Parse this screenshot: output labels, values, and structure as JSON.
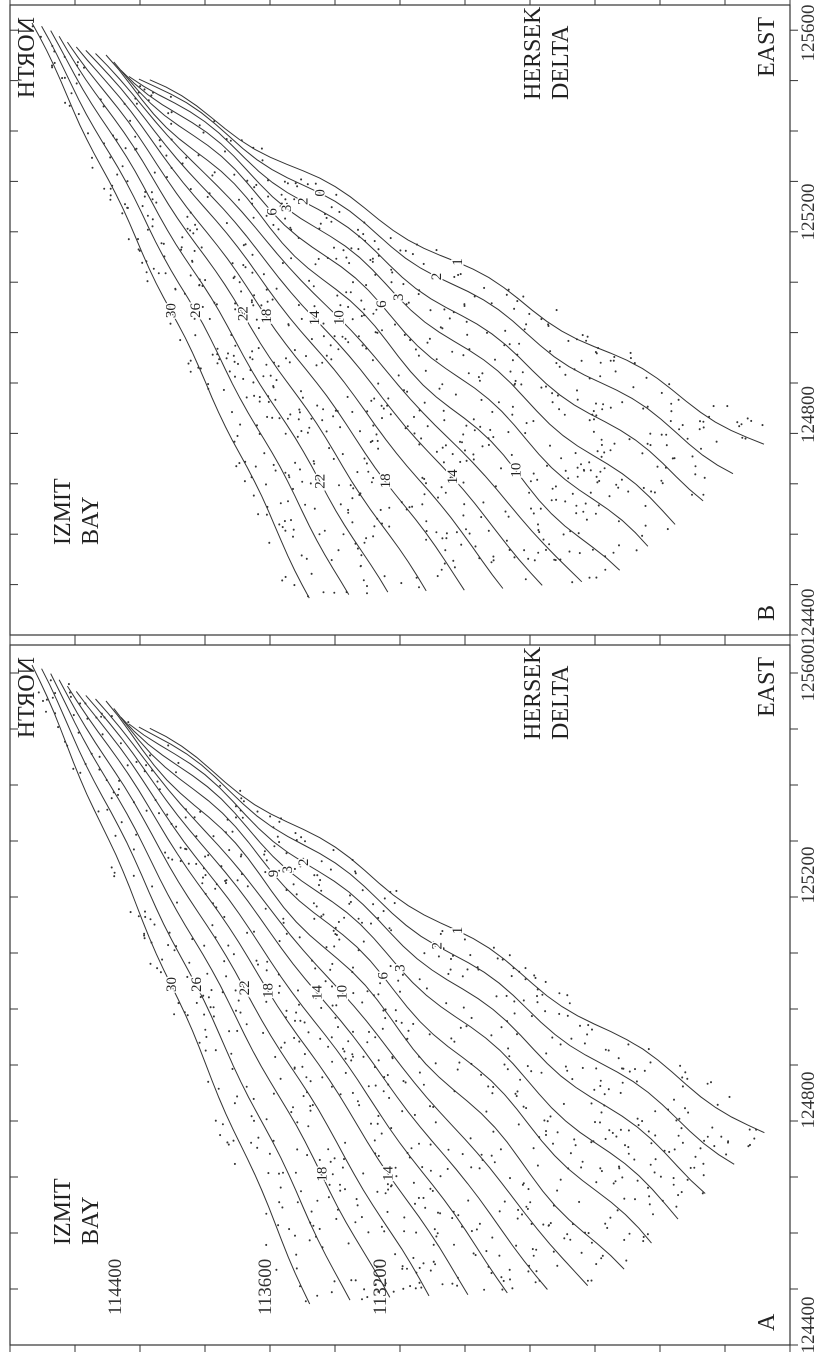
{
  "panels": [
    {
      "letter": "A",
      "north_label": "NORTH",
      "east_label": "EAST",
      "bay_label": [
        "IZMIT",
        "BAY"
      ],
      "delta_label": [
        "HERSEK",
        "DELTA"
      ],
      "east_ticks": [
        "124400",
        "124800",
        "125200",
        "125600"
      ],
      "north_ticks": [
        "114400",
        "113600",
        "113200"
      ],
      "contour_labels": [
        "30",
        "26",
        "22",
        "18",
        "14",
        "10",
        "6",
        "3",
        "2",
        "1"
      ],
      "upper_labels": [
        "9",
        "3",
        "2"
      ],
      "lower_labels": [
        "18",
        "14"
      ]
    },
    {
      "letter": "B",
      "north_label": "NORTH",
      "east_label": "EAST",
      "bay_label": [
        "IZMIT",
        "BAY"
      ],
      "delta_label": [
        "HERSEK",
        "DELTA"
      ],
      "east_ticks": [
        "124400",
        "124800",
        "125200",
        "125600"
      ],
      "north_ticks": [],
      "contour_labels": [
        "30",
        "26",
        "22",
        "18",
        "14",
        "10",
        "6",
        "3",
        "2",
        "1"
      ],
      "upper_labels": [
        "6",
        "3",
        "2",
        "0"
      ],
      "lower_labels": [
        "22",
        "18",
        "14",
        "10"
      ]
    }
  ]
}
